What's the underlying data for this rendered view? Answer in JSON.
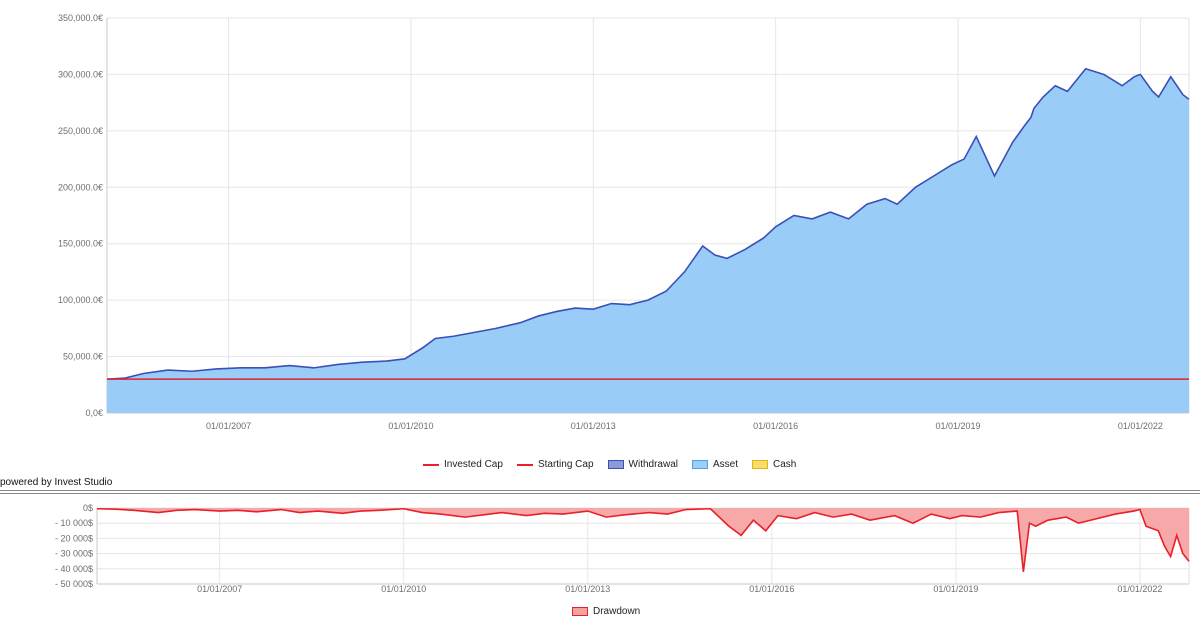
{
  "chart_data": [
    {
      "type": "area",
      "x_ticks": [
        "01/01/2007",
        "01/01/2010",
        "01/01/2013",
        "01/01/2016",
        "01/01/2019",
        "01/01/2022"
      ],
      "y_ticks": [
        "0,0€",
        "50,000.0€",
        "100,000.0€",
        "150,000.0€",
        "200,000.0€",
        "250,000.0€",
        "300,000.0€",
        "350,000.0€"
      ],
      "ylim": [
        0,
        350000
      ],
      "xlim": [
        2005.0,
        2022.8
      ],
      "grid": true,
      "legend": [
        {
          "label": "Invested Cap",
          "kind": "line",
          "color": "#e8202a"
        },
        {
          "label": "Starting Cap",
          "kind": "line",
          "color": "#e8202a"
        },
        {
          "label": "Withdrawal",
          "kind": "box",
          "color": "#8e9ad6",
          "border": "#3a4fb8"
        },
        {
          "label": "Asset",
          "kind": "box",
          "color": "#9ccef7",
          "border": "#4aa3e8"
        },
        {
          "label": "Cash",
          "kind": "box",
          "color": "#f7dc6f",
          "border": "#e6b800"
        }
      ],
      "series": [
        {
          "name": "Asset",
          "color": "#3a4fb8",
          "fill": "#99ccf6",
          "x": [
            2005.0,
            2005.3,
            2005.6,
            2006.0,
            2006.4,
            2006.8,
            2007.2,
            2007.6,
            2008.0,
            2008.4,
            2008.8,
            2009.2,
            2009.6,
            2009.9,
            2010.2,
            2010.4,
            2010.7,
            2011.0,
            2011.4,
            2011.8,
            2012.1,
            2012.4,
            2012.7,
            2013.0,
            2013.3,
            2013.6,
            2013.9,
            2014.2,
            2014.5,
            2014.8,
            2015.0,
            2015.2,
            2015.5,
            2015.8,
            2016.0,
            2016.3,
            2016.6,
            2016.9,
            2017.2,
            2017.5,
            2017.8,
            2018.0,
            2018.3,
            2018.6,
            2018.9,
            2019.1,
            2019.3,
            2019.6,
            2019.9,
            2020.1,
            2020.2,
            2020.25,
            2020.4,
            2020.6,
            2020.8,
            2021.1,
            2021.4,
            2021.7,
            2021.9,
            2022.0,
            2022.2,
            2022.3,
            2022.5,
            2022.7,
            2022.8
          ],
          "values": [
            30000,
            31000,
            35000,
            38000,
            37000,
            39000,
            40000,
            40000,
            42000,
            40000,
            43000,
            45000,
            46000,
            48000,
            58000,
            66000,
            68000,
            71000,
            75000,
            80000,
            86000,
            90000,
            93000,
            92000,
            97000,
            96000,
            100000,
            108000,
            125000,
            148000,
            140000,
            137000,
            145000,
            155000,
            165000,
            175000,
            172000,
            178000,
            172000,
            185000,
            190000,
            185000,
            200000,
            210000,
            220000,
            225000,
            245000,
            210000,
            240000,
            255000,
            262000,
            270000,
            280000,
            290000,
            285000,
            305000,
            300000,
            290000,
            298000,
            300000,
            285000,
            280000,
            298000,
            282000,
            278000
          ]
        },
        {
          "name": "Invested Cap",
          "color": "#e8202a",
          "x": [
            2005.0,
            2022.8
          ],
          "values": [
            30000,
            30000
          ]
        }
      ]
    },
    {
      "type": "area",
      "x_ticks": [
        "01/01/2007",
        "01/01/2010",
        "01/01/2013",
        "01/01/2016",
        "01/01/2019",
        "01/01/2022"
      ],
      "y_ticks": [
        "0$",
        "- 10 000$",
        "- 20 000$",
        "- 30 000$",
        "- 40 000$",
        "- 50 000$"
      ],
      "ylim": [
        -50000,
        0
      ],
      "xlim": [
        2005.0,
        2022.8
      ],
      "grid": true,
      "legend": [
        {
          "label": "Drawdown",
          "kind": "box",
          "color": "#f4a3a3",
          "border": "#e8202a"
        }
      ],
      "series": [
        {
          "name": "Drawdown",
          "color": "#e8202a",
          "fill": "#f7a8a8",
          "x": [
            2005.0,
            2005.3,
            2005.6,
            2006.0,
            2006.3,
            2006.6,
            2007.0,
            2007.3,
            2007.6,
            2008.0,
            2008.3,
            2008.6,
            2009.0,
            2009.3,
            2009.6,
            2010.0,
            2010.3,
            2010.6,
            2011.0,
            2011.3,
            2011.6,
            2012.0,
            2012.3,
            2012.6,
            2013.0,
            2013.3,
            2013.6,
            2014.0,
            2014.3,
            2014.6,
            2015.0,
            2015.3,
            2015.5,
            2015.7,
            2015.9,
            2016.1,
            2016.4,
            2016.7,
            2017.0,
            2017.3,
            2017.6,
            2018.0,
            2018.3,
            2018.6,
            2018.9,
            2019.1,
            2019.4,
            2019.7,
            2020.0,
            2020.1,
            2020.2,
            2020.3,
            2020.5,
            2020.8,
            2021.0,
            2021.3,
            2021.6,
            2021.9,
            2022.0,
            2022.1,
            2022.3,
            2022.4,
            2022.5,
            2022.6,
            2022.7,
            2022.8
          ],
          "values": [
            -500,
            -800,
            -1500,
            -3000,
            -1500,
            -1000,
            -2000,
            -1500,
            -2500,
            -1000,
            -3000,
            -2000,
            -3500,
            -2000,
            -1500,
            -500,
            -3000,
            -4000,
            -6000,
            -4500,
            -3000,
            -5000,
            -3500,
            -4000,
            -2000,
            -6000,
            -4500,
            -3000,
            -4000,
            -1000,
            -500,
            -12000,
            -18000,
            -8000,
            -15000,
            -5000,
            -7000,
            -3000,
            -6000,
            -4000,
            -8000,
            -5000,
            -10000,
            -4000,
            -7000,
            -5000,
            -6000,
            -3000,
            -2000,
            -42000,
            -10000,
            -12000,
            -8000,
            -6000,
            -10000,
            -7000,
            -4000,
            -2000,
            -1000,
            -12000,
            -15000,
            -25000,
            -32000,
            -18000,
            -30000,
            -35000
          ]
        }
      ]
    }
  ],
  "footer": {
    "powered_by": "powered by Invest Studio"
  }
}
